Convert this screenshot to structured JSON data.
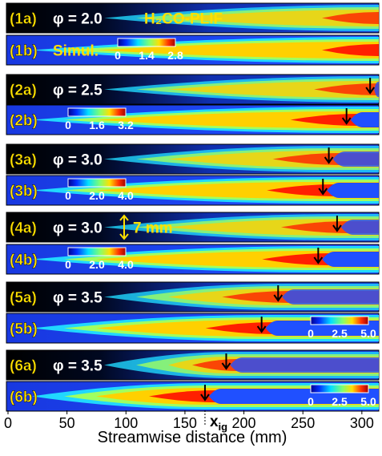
{
  "panels": [
    {
      "label": "(1a)",
      "text": "φ = 2.0",
      "extra": "H₂CO-PLIF"
    },
    {
      "label": "(1b)",
      "text": "Simul.",
      "colorbar": [
        "0",
        "1.4",
        "2.8"
      ]
    },
    {
      "label": "(2a)",
      "text": "φ = 2.5",
      "arrow": 307
    },
    {
      "label": "(2b)",
      "colorbar": [
        "0",
        "1.6",
        "3.2"
      ],
      "arrow": 287
    },
    {
      "label": "(3a)",
      "text": "φ = 3.0",
      "arrow": 272
    },
    {
      "label": "(3b)",
      "colorbar": [
        "0",
        "2.0",
        "4.0"
      ],
      "arrow": 267
    },
    {
      "label": "(4a)",
      "text": "φ = 3.0",
      "extra": "7 mm",
      "arrow": 279
    },
    {
      "label": "(4b)",
      "colorbar": [
        "0",
        "2.0",
        "4.0"
      ],
      "arrow": 263
    },
    {
      "label": "(5a)",
      "text": "φ = 3.5",
      "arrow": 229
    },
    {
      "label": "(5b)",
      "colorbar": [
        "0",
        "2.5",
        "5.0"
      ],
      "arrow": 215
    },
    {
      "label": "(6a)",
      "text": "φ = 3.5",
      "arrow": 185
    },
    {
      "label": "(6b)",
      "colorbar": [
        "0",
        "2.5",
        "5.0"
      ],
      "arrow": 167
    }
  ],
  "xig": {
    "main": "x",
    "sub": "ig"
  },
  "axis": {
    "title": "Streamwise distance (mm)",
    "xlim": [
      0,
      313
    ],
    "xticks": [
      0,
      50,
      100,
      150,
      200,
      250,
      300
    ]
  }
}
